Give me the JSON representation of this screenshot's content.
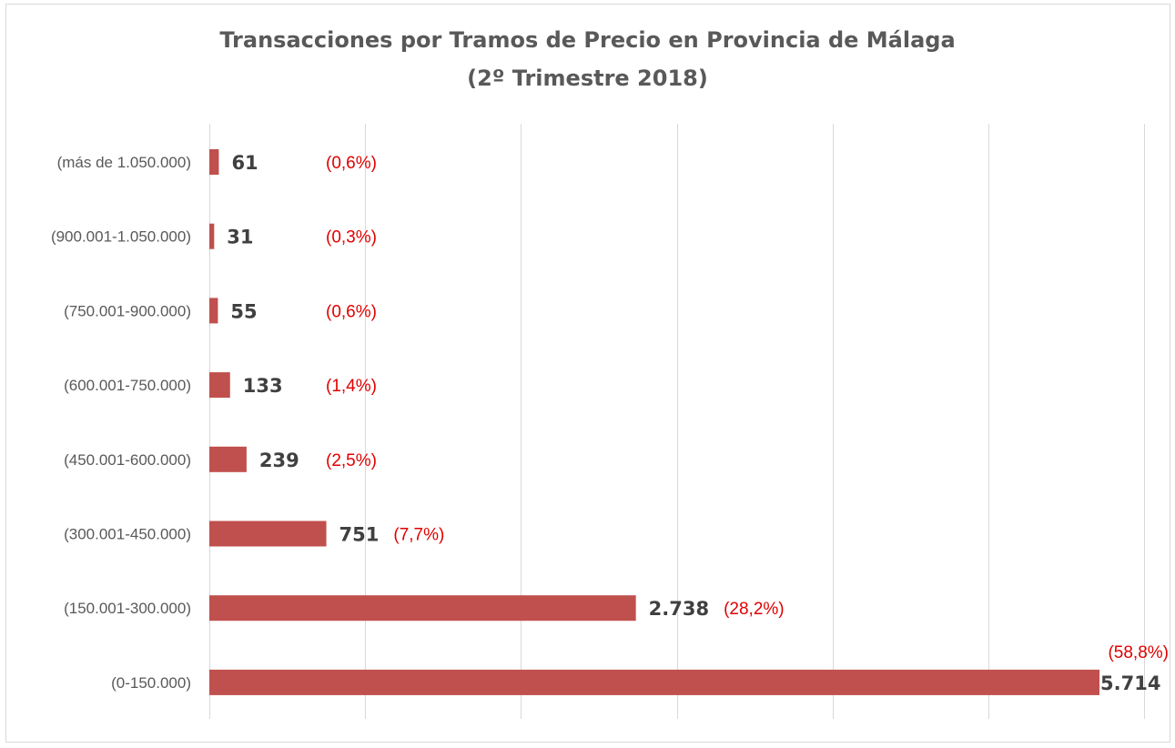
{
  "chart_data": {
    "type": "bar",
    "orientation": "horizontal",
    "title": "Transacciones por Tramos de Precio en Provincia de Málaga",
    "subtitle": "(2º Trimestre 2018)",
    "xlim": [
      0,
      6000
    ],
    "grid": true,
    "legend": "none",
    "bar_color": "#c0504d",
    "categories": [
      "(más de 1.050.000)",
      "(900.001-1.050.000)",
      "(750.001-900.000)",
      "(600.001-750.000)",
      "(450.001-600.000)",
      "(300.001-450.000)",
      "(150.001-300.000)",
      "(0-150.000)"
    ],
    "values": [
      61,
      31,
      55,
      133,
      239,
      751,
      2738,
      5714
    ],
    "value_labels": [
      "61",
      "31",
      "55",
      "133",
      "239",
      "751",
      "2.738",
      "5.714"
    ],
    "percent_labels": [
      "(0,6%)",
      "(0,3%)",
      "(0,6%)",
      "(1,4%)",
      "(2,5%)",
      "(7,7%)",
      "(28,2%)",
      "(58,8%)"
    ]
  }
}
